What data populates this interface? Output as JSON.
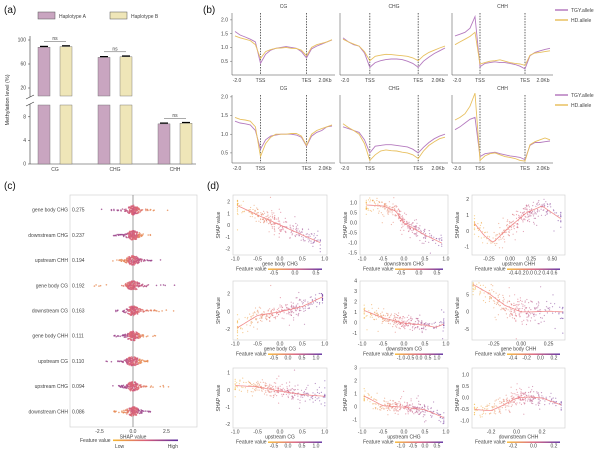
{
  "chart_data": [
    {
      "panel": "(a)",
      "type": "bar",
      "categories": [
        "CG",
        "CHG",
        "CHH"
      ],
      "series": [
        {
          "name": "Haplotype A",
          "values": [
            88,
            71,
            6.8
          ],
          "color": "#c9a5c0"
        },
        {
          "name": "Haplotype B",
          "values": [
            89,
            72,
            6.9
          ],
          "color": "#efe6b8"
        }
      ],
      "significance": [
        "ns",
        "ns",
        "ns"
      ],
      "ylabel": "Methylation level (%)",
      "yaxis_break": {
        "lower": [
          0,
          10
        ],
        "upper": [
          20,
          100
        ]
      },
      "yticks_lower": [
        "0",
        "4",
        "8"
      ],
      "yticks_upper": [
        "20",
        "60",
        "100"
      ],
      "legend": "top"
    },
    {
      "panel": "(b)",
      "type": "line",
      "xticks": [
        "-2.0",
        "TSS",
        "TES",
        "2.0Kb"
      ],
      "yticks": [
        "0.5",
        "1.0",
        "1.5",
        "2.0"
      ],
      "legend_entries": [
        "TGY.allele",
        "HD.allele"
      ],
      "colors": {
        "TGY.allele": "#b57bbf",
        "HD.allele": "#e8c060"
      },
      "rows": [
        {
          "ylim": [
            0,
            2.25
          ],
          "subplots": [
            {
              "title": "CG",
              "TGY": [
                1.58,
                1.45,
                1.38,
                1.3,
                1.2,
                0.42,
                0.75,
                0.9,
                0.97,
                1.0,
                1.03,
                1.0,
                0.97,
                0.85,
                0.62,
                0.95,
                1.05,
                1.12,
                1.2,
                1.27
              ],
              "HD": [
                1.42,
                1.35,
                1.3,
                1.25,
                1.1,
                0.6,
                0.85,
                0.92,
                0.97,
                0.98,
                1.0,
                0.97,
                0.96,
                0.9,
                0.7,
                1.0,
                1.1,
                1.15,
                1.2,
                1.28
              ]
            },
            {
              "title": "CHG",
              "TGY": [
                1.35,
                1.2,
                1.1,
                1.05,
                0.8,
                0.28,
                0.45,
                0.52,
                0.56,
                0.58,
                0.58,
                0.56,
                0.5,
                0.42,
                0.28,
                0.5,
                0.65,
                0.78,
                0.88,
                0.98
              ],
              "HD": [
                1.3,
                1.2,
                1.12,
                1.05,
                0.85,
                0.52,
                0.68,
                0.72,
                0.75,
                0.74,
                0.72,
                0.7,
                0.68,
                0.62,
                0.52,
                0.7,
                0.82,
                0.9,
                0.98,
                1.05
              ]
            },
            {
              "title": "CHH",
              "TGY": [
                1.42,
                1.48,
                1.55,
                1.7,
                2.12,
                0.3,
                0.42,
                0.45,
                0.48,
                0.45,
                0.45,
                0.42,
                0.38,
                0.32,
                0.22,
                0.7,
                0.82,
                0.88,
                0.93,
                0.97
              ],
              "HD": [
                1.1,
                1.2,
                1.3,
                1.4,
                1.55,
                0.4,
                0.45,
                0.5,
                0.52,
                0.55,
                0.5,
                0.45,
                0.42,
                0.4,
                0.35,
                0.72,
                0.8,
                0.82,
                0.85,
                0.88
              ]
            }
          ]
        },
        {
          "ylim": [
            0.23,
            2.05
          ],
          "subplots": [
            {
              "title": "CG",
              "TGY": [
                1.35,
                1.3,
                1.28,
                1.25,
                1.1,
                0.6,
                0.85,
                0.95,
                0.98,
                1.0,
                1.0,
                1.0,
                0.98,
                0.92,
                0.68,
                0.95,
                1.05,
                1.1,
                1.2,
                1.22
              ],
              "HD": [
                1.45,
                1.4,
                1.38,
                1.35,
                1.2,
                0.4,
                0.75,
                0.92,
                1.0,
                1.0,
                1.0,
                1.02,
                1.02,
                0.95,
                0.7,
                1.0,
                1.1,
                1.15,
                1.2,
                1.25
              ]
            },
            {
              "title": "CHG",
              "TGY": [
                1.2,
                1.15,
                1.1,
                1.05,
                0.85,
                0.5,
                0.68,
                0.7,
                0.72,
                0.72,
                0.7,
                0.68,
                0.66,
                0.6,
                0.5,
                0.65,
                0.78,
                0.88,
                0.95,
                1.0
              ],
              "HD": [
                1.28,
                1.18,
                1.1,
                1.0,
                0.75,
                0.3,
                0.45,
                0.55,
                0.58,
                0.56,
                0.55,
                0.52,
                0.5,
                0.45,
                0.35,
                0.55,
                0.7,
                0.8,
                0.88,
                0.92
              ]
            },
            {
              "title": "CHH",
              "TGY": [
                1.12,
                1.2,
                1.3,
                1.4,
                1.45,
                0.4,
                0.48,
                0.5,
                0.52,
                0.48,
                0.45,
                0.42,
                0.4,
                0.38,
                0.32,
                0.7,
                0.78,
                0.78,
                0.8,
                0.82
              ],
              "HD": [
                1.38,
                1.45,
                1.55,
                1.75,
                2.1,
                0.3,
                0.42,
                0.48,
                0.5,
                0.45,
                0.4,
                0.38,
                0.35,
                0.3,
                0.28,
                0.72,
                0.8,
                0.85,
                0.9,
                0.85
              ]
            }
          ]
        }
      ]
    },
    {
      "panel": "(c)",
      "type": "scatter",
      "xlabel": "SHAP value",
      "xticks": [
        "-2.5",
        "0.0",
        "2.5"
      ],
      "colorbar": {
        "label": "Feature value",
        "low": "Low",
        "high": "High",
        "low_color": "#f5b731",
        "mid_color": "#d9607a",
        "high_color": "#5c2a9d"
      },
      "features": [
        {
          "name": "gene body CHG",
          "importance": "0.275",
          "shap_range": [
            -2.4,
            2.7
          ],
          "high_side": "negative"
        },
        {
          "name": "downstream CHG",
          "importance": "0.237",
          "shap_range": [
            -1.5,
            1.3
          ],
          "high_side": "negative"
        },
        {
          "name": "upstream CHH",
          "importance": "0.194",
          "shap_range": [
            -1.5,
            2.4
          ],
          "high_side": "positive"
        },
        {
          "name": "gene body CG",
          "importance": "0.192",
          "shap_range": [
            -3.3,
            3.4
          ],
          "high_side": "positive"
        },
        {
          "name": "downstream CG",
          "importance": "0.163",
          "shap_range": [
            -1.6,
            3.8
          ],
          "high_side": "negative"
        },
        {
          "name": "gene body CHH",
          "importance": "0.111",
          "shap_range": [
            -1.4,
            1.7
          ],
          "high_side": "negative"
        },
        {
          "name": "upstream CG",
          "importance": "0.110",
          "shap_range": [
            -2.0,
            1.1
          ],
          "high_side": "negative"
        },
        {
          "name": "upstream CHG",
          "importance": "0.094",
          "shap_range": [
            -1.5,
            2.8
          ],
          "high_side": "negative"
        },
        {
          "name": "downstream CHH",
          "importance": "0.086",
          "shap_range": [
            -1.4,
            1.3
          ],
          "high_side": "positive"
        }
      ]
    },
    {
      "panel": "(d)",
      "type": "scatter",
      "ylabel": "SHAP value",
      "colorbar_label": "Feature value",
      "trend_color": "#f08080",
      "subplots": [
        {
          "xlabel": "gene body CHG",
          "xlim": [
            -1.05,
            1.05
          ],
          "ylim": [
            -2.5,
            2.6
          ],
          "xticks": [
            "-1.0",
            "-0.5",
            "0.0",
            "0.5",
            "1.0"
          ],
          "yticks": [
            "-2",
            "-1",
            "0",
            "1",
            "2"
          ],
          "cbar_ticks": [
            "-0.5",
            "0.0",
            "0.5"
          ],
          "trend": [
            [
              -0.95,
              1.7
            ],
            [
              -0.5,
              0.9
            ],
            [
              0,
              0.05
            ],
            [
              0.5,
              -0.8
            ],
            [
              0.9,
              -1.45
            ]
          ],
          "spread": 0.35
        },
        {
          "xlabel": "downstream CHG",
          "xlim": [
            -1.05,
            1.05
          ],
          "ylim": [
            -1.6,
            1.4
          ],
          "xticks": [
            "-1.0",
            "-0.5",
            "0.0",
            "0.5",
            "1.0"
          ],
          "yticks": [
            "-1.5",
            "-1.0",
            "-0.5",
            "0.0",
            "0.5",
            "1.0"
          ],
          "cbar_ticks": [
            "-0.5",
            "0.0",
            "0.5"
          ],
          "trend": [
            [
              -0.9,
              0.9
            ],
            [
              -0.5,
              0.85
            ],
            [
              -0.2,
              0.6
            ],
            [
              0,
              0
            ],
            [
              0.5,
              -0.6
            ],
            [
              0.9,
              -1.0
            ]
          ],
          "spread": 0.2
        },
        {
          "xlabel": "upstream CHH",
          "xlim": [
            -0.45,
            0.65
          ],
          "ylim": [
            -1.5,
            2.3
          ],
          "xticks": [
            "-0.25",
            "0.00",
            "0.25",
            "0.50"
          ],
          "yticks": [
            "-1",
            "0",
            "1",
            "2"
          ],
          "cbar_ticks": [
            "-0.4",
            "-0.2",
            "0.0",
            "0.2",
            "0.4",
            "0.6"
          ],
          "trend": [
            [
              -0.42,
              0.5
            ],
            [
              -0.3,
              -0.3
            ],
            [
              -0.2,
              -0.7
            ],
            [
              0,
              0.3
            ],
            [
              0.2,
              1.2
            ],
            [
              0.38,
              1.6
            ],
            [
              0.6,
              0.8
            ]
          ],
          "spread": 0.3
        },
        {
          "xlabel": "gene body CG",
          "xlim": [
            -1.05,
            1.05
          ],
          "ylim": [
            -3.2,
            3.5
          ],
          "xticks": [
            "-1.0",
            "-0.5",
            "0.0",
            "0.5",
            "1.0"
          ],
          "yticks": [
            "-2",
            "0",
            "2"
          ],
          "cbar_ticks": [
            "-0.5",
            "0.0",
            "0.5",
            "1.0"
          ],
          "trend": [
            [
              -0.95,
              -1.8
            ],
            [
              -0.5,
              -0.4
            ],
            [
              0,
              0
            ],
            [
              0.5,
              0.6
            ],
            [
              0.95,
              1.7
            ]
          ],
          "spread": 0.4
        },
        {
          "xlabel": "downstream CG",
          "xlim": [
            -1.05,
            1.05
          ],
          "ylim": [
            -1.6,
            4
          ],
          "xticks": [
            "-1.0",
            "-0.5",
            "0.0",
            "0.5",
            "1.0"
          ],
          "yticks": [
            "-1",
            "0",
            "1",
            "2",
            "3",
            "4"
          ],
          "cbar_ticks": [
            "-1.0",
            "-0.5",
            "0.0",
            "0.5",
            "1.0"
          ],
          "trend": [
            [
              -0.95,
              1.2
            ],
            [
              -0.5,
              0.5
            ],
            [
              0,
              0
            ],
            [
              0.5,
              -0.2
            ],
            [
              0.75,
              -0.4
            ],
            [
              0.95,
              -0.1
            ]
          ],
          "spread": 0.3
        },
        {
          "xlabel": "gene body CHH",
          "xlim": [
            -0.45,
            0.4
          ],
          "ylim": [
            -8,
            9
          ],
          "xticks": [
            "-0.25",
            "0.00",
            "0.25"
          ],
          "yticks": [
            "-5",
            "0",
            "5"
          ],
          "cbar_ticks": [
            "-0.4",
            "-0.2",
            "0.0",
            "0.2"
          ],
          "trend": [
            [
              -0.44,
              8
            ],
            [
              -0.3,
              5.5
            ],
            [
              -0.15,
              2
            ],
            [
              0,
              0.1
            ],
            [
              0.1,
              0.1
            ],
            [
              0.25,
              0.3
            ],
            [
              0.38,
              0.1
            ]
          ],
          "spread": 1.6
        },
        {
          "xlabel": "upstream CG",
          "xlim": [
            -1.05,
            1.05
          ],
          "ylim": [
            -2.2,
            1.3
          ],
          "xticks": [
            "-1.0",
            "-0.5",
            "0.0",
            "0.5",
            "1.0"
          ],
          "yticks": [
            "-2",
            "-1",
            "0",
            "1"
          ],
          "cbar_ticks": [
            "-0.5",
            "0.0",
            "0.5",
            "1.0"
          ],
          "trend": [
            [
              -1,
              0.28
            ],
            [
              -0.5,
              0.2
            ],
            [
              0,
              -0.05
            ],
            [
              0.5,
              -0.25
            ],
            [
              1,
              -0.35
            ]
          ],
          "spread": 0.2
        },
        {
          "xlabel": "upstream CHG",
          "xlim": [
            -1.05,
            1.05
          ],
          "ylim": [
            -1.6,
            3
          ],
          "xticks": [
            "-1.0",
            "-0.5",
            "0.0",
            "0.5",
            "1.0"
          ],
          "yticks": [
            "-1",
            "0",
            "1",
            "2",
            "3"
          ],
          "cbar_ticks": [
            "-1.0",
            "-0.5",
            "0.0",
            "0.5"
          ],
          "trend": [
            [
              -0.95,
              0.85
            ],
            [
              -0.5,
              0.1
            ],
            [
              0,
              0
            ],
            [
              0.5,
              -0.2
            ],
            [
              0.95,
              -0.8
            ]
          ],
          "spread": 0.25
        },
        {
          "xlabel": "downstream CHH",
          "xlim": [
            -0.35,
            0.38
          ],
          "ylim": [
            -1.3,
            1.3
          ],
          "xticks": [
            "-0.2",
            "0.0",
            "0.2"
          ],
          "yticks": [
            "-1.0",
            "-0.5",
            "0.0",
            "0.5",
            "1.0"
          ],
          "cbar_ticks": [
            "-0.2",
            "0.0",
            "0.2"
          ],
          "trend": [
            [
              -0.33,
              -0.5
            ],
            [
              -0.2,
              -0.55
            ],
            [
              -0.1,
              -0.3
            ],
            [
              0,
              0
            ],
            [
              0.1,
              0.05
            ],
            [
              0.2,
              0
            ],
            [
              0.35,
              -0.3
            ]
          ],
          "spread": 0.15
        }
      ]
    }
  ]
}
